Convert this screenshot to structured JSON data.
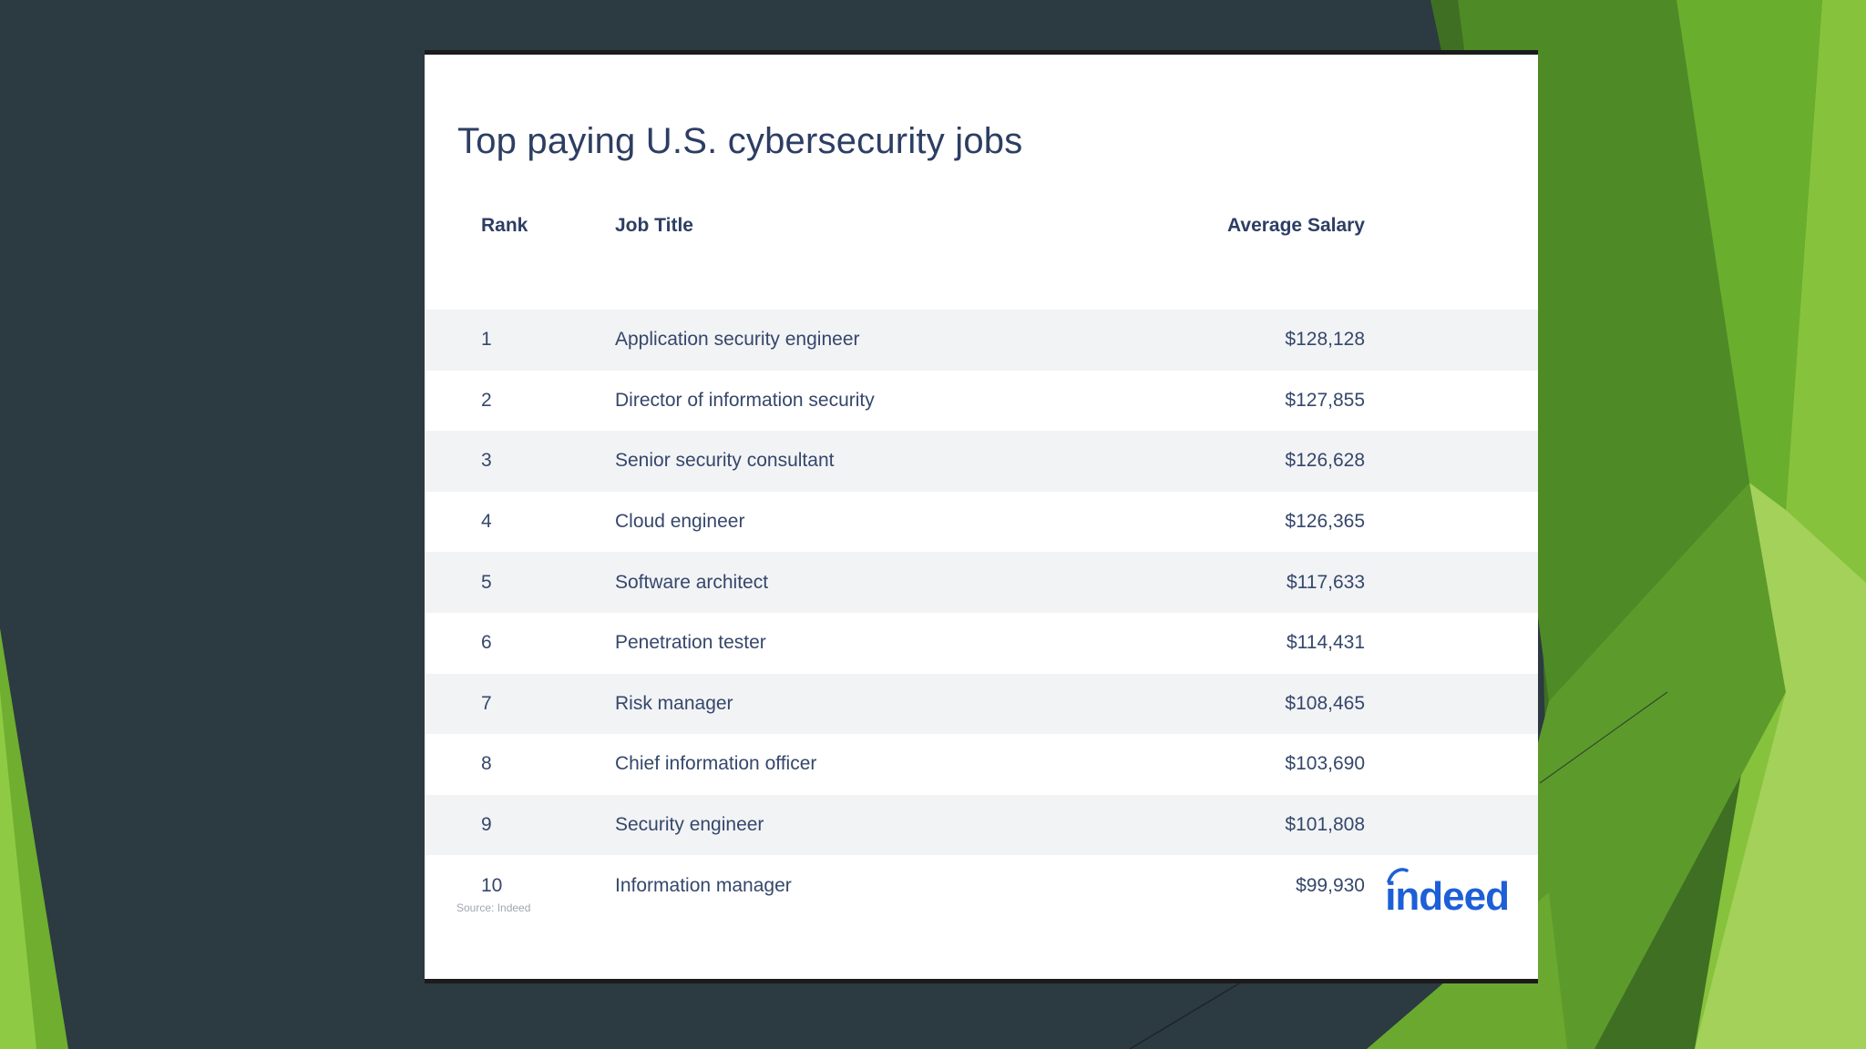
{
  "slide": {
    "title": "Top paying U.S. cybersecurity jobs",
    "source": "Source: Indeed",
    "logo_text": "indeed"
  },
  "table": {
    "headers": {
      "rank": "Rank",
      "title": "Job Title",
      "salary": "Average Salary"
    },
    "rows": [
      {
        "rank": "1",
        "title": "Application security engineer",
        "salary": "$128,128"
      },
      {
        "rank": "2",
        "title": "Director of information security",
        "salary": "$127,855"
      },
      {
        "rank": "3",
        "title": "Senior security consultant",
        "salary": "$126,628"
      },
      {
        "rank": "4",
        "title": "Cloud engineer",
        "salary": "$126,365"
      },
      {
        "rank": "5",
        "title": "Software architect",
        "salary": "$117,633"
      },
      {
        "rank": "6",
        "title": "Penetration tester",
        "salary": "$114,431"
      },
      {
        "rank": "7",
        "title": "Risk manager",
        "salary": "$108,465"
      },
      {
        "rank": "8",
        "title": "Chief information officer",
        "salary": "$103,690"
      },
      {
        "rank": "9",
        "title": "Security engineer",
        "salary": "$101,808"
      },
      {
        "rank": "10",
        "title": "Information manager",
        "salary": "$99,930"
      }
    ]
  },
  "colors": {
    "background": "#2c3a42",
    "accent_green": "#7cc23a",
    "text": "#2d3e63",
    "logo": "#1d5fd6"
  }
}
